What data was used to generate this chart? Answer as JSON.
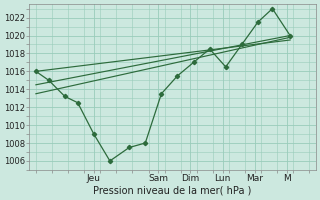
{
  "bg_color": "#cce8df",
  "plot_bg_color": "#cce8df",
  "grid_color": "#99ccbb",
  "line_color": "#2d6b3c",
  "marker_color": "#2d6b3c",
  "xlabel": "Pression niveau de la mer( hPa )",
  "ylim": [
    1005.0,
    1023.5
  ],
  "yticks": [
    1006,
    1008,
    1010,
    1012,
    1014,
    1016,
    1018,
    1020,
    1022
  ],
  "xlim": [
    -0.2,
    8.7
  ],
  "day_labels": [
    "Jeu",
    "Sam",
    "Dim",
    "Lun",
    "Mar",
    "M"
  ],
  "day_positions": [
    1.8,
    3.8,
    4.8,
    5.8,
    6.8,
    7.8
  ],
  "series1": {
    "x": [
      0.0,
      0.4,
      0.9,
      1.3,
      1.8,
      2.3,
      2.9,
      3.4,
      3.9,
      4.4,
      4.9,
      5.4,
      5.9,
      6.4,
      6.9,
      7.35,
      7.9
    ],
    "y": [
      1016.0,
      1015.0,
      1013.2,
      1012.5,
      1009.0,
      1006.0,
      1007.5,
      1008.0,
      1013.5,
      1015.5,
      1017.0,
      1018.5,
      1016.5,
      1019.0,
      1021.5,
      1023.0,
      1020.0
    ]
  },
  "series2_line": {
    "x": [
      0.0,
      7.9
    ],
    "y": [
      1014.5,
      1020.0
    ]
  },
  "series3_line": {
    "x": [
      0.0,
      7.9
    ],
    "y": [
      1016.0,
      1019.5
    ]
  },
  "series4_line": {
    "x": [
      0.0,
      7.9
    ],
    "y": [
      1013.5,
      1019.8
    ]
  }
}
